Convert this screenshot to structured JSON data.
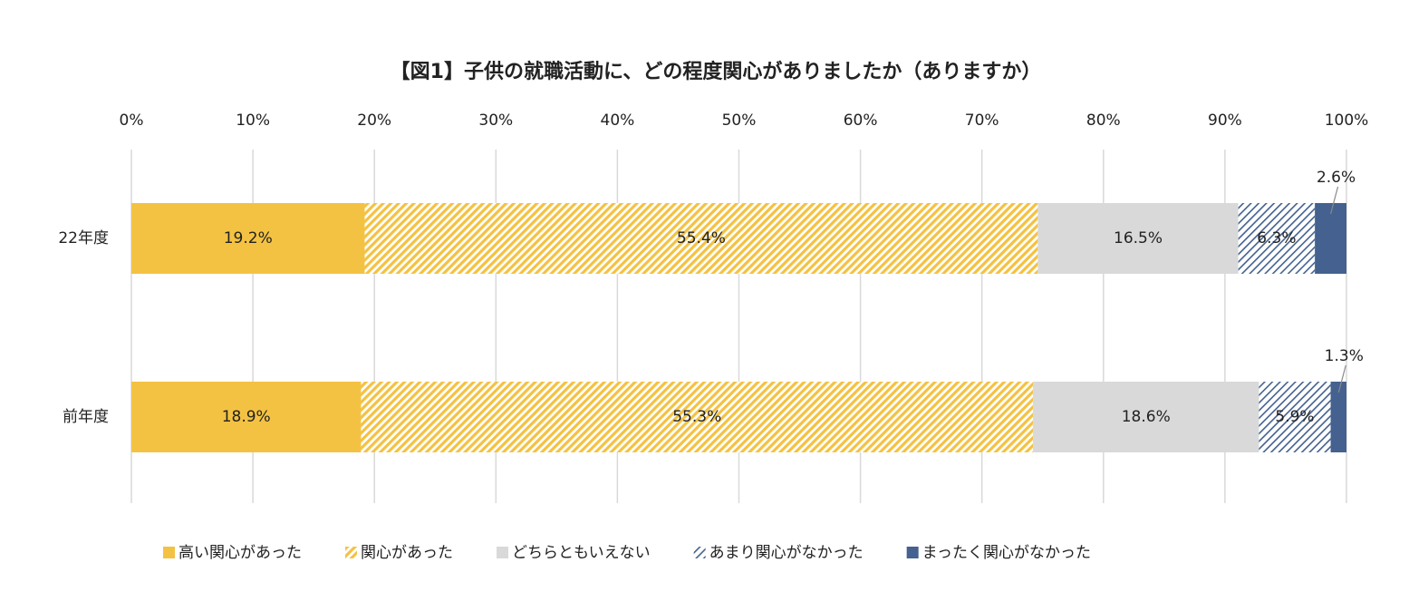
{
  "chart_data": {
    "type": "stacked-bar-horizontal",
    "title": "【図1】子供の就職活動に、どの程度関心がありましたか（ありますか）",
    "categories": [
      "22年度",
      "前年度"
    ],
    "series": [
      {
        "name": "高い関心があった",
        "color": "#f4c242",
        "hatch": false,
        "values": [
          19.2,
          18.9
        ],
        "value_labels": [
          "19.2%",
          "18.9%"
        ]
      },
      {
        "name": "関心があった",
        "color": "#f4c242",
        "hatch": true,
        "values": [
          55.4,
          55.3
        ],
        "value_labels": [
          "55.4%",
          "55.3%"
        ]
      },
      {
        "name": "どちらともいえない",
        "color": "#d9d9d9",
        "hatch": false,
        "values": [
          16.5,
          18.6
        ],
        "value_labels": [
          "16.5%",
          "18.6%"
        ]
      },
      {
        "name": "あまり関心がなかった",
        "color": "#44618f",
        "hatch": true,
        "values": [
          6.3,
          5.9
        ],
        "value_labels": [
          "6.3%",
          "5.9%"
        ]
      },
      {
        "name": "まったく関心がなかった",
        "color": "#44618f",
        "hatch": false,
        "values": [
          2.6,
          1.3
        ],
        "value_labels": [
          "2.6%",
          "1.3%"
        ]
      }
    ],
    "xlim": [
      0,
      100
    ],
    "xticks": [
      {
        "value": 0,
        "label": "0%"
      },
      {
        "value": 10,
        "label": "10%"
      },
      {
        "value": 20,
        "label": "20%"
      },
      {
        "value": 30,
        "label": "30%"
      },
      {
        "value": 40,
        "label": "40%"
      },
      {
        "value": 50,
        "label": "50%"
      },
      {
        "value": 60,
        "label": "60%"
      },
      {
        "value": 70,
        "label": "70%"
      },
      {
        "value": 80,
        "label": "80%"
      },
      {
        "value": 90,
        "label": "90%"
      },
      {
        "value": 100,
        "label": "100%"
      }
    ],
    "grid": true,
    "legend": "bottom"
  }
}
